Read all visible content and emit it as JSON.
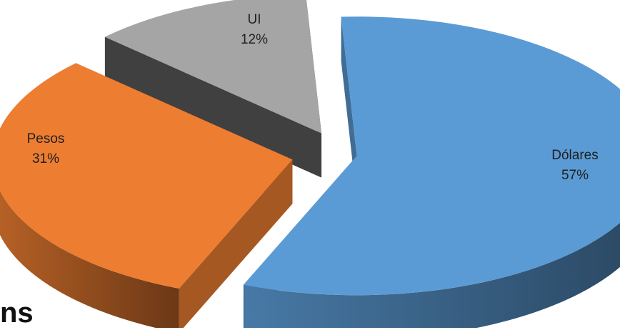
{
  "chart_data": {
    "type": "pie",
    "title": "",
    "exploded": true,
    "three_d": true,
    "categories": [
      "Dólares",
      "Pesos",
      "UI"
    ],
    "values": [
      57,
      31,
      12
    ],
    "value_labels": [
      "57%",
      "31%",
      "12%"
    ],
    "colors": [
      "#5b9bd5",
      "#ed7d31",
      "#a5a5a5"
    ]
  },
  "caption": "ns"
}
